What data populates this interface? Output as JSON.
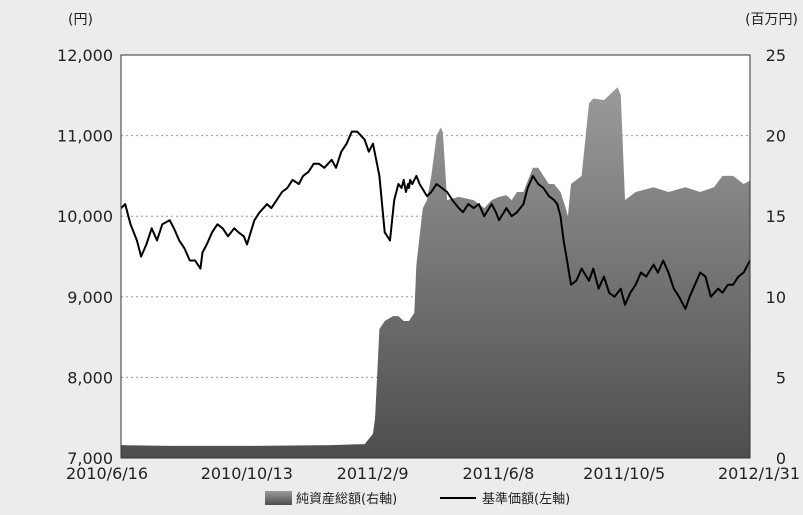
{
  "chart_data": {
    "type": "area",
    "title": "",
    "left_axis": {
      "unit": "(円)",
      "ylim": [
        7000,
        12000
      ],
      "ticks": [
        7000,
        8000,
        9000,
        10000,
        11000,
        12000
      ],
      "tick_labels": [
        "7,000",
        "8,000",
        "9,000",
        "10,000",
        "11,000",
        "12,000"
      ]
    },
    "right_axis": {
      "unit": "(百万円)",
      "ylim": [
        0,
        25
      ],
      "ticks": [
        0,
        5,
        10,
        15,
        20,
        25
      ],
      "tick_labels": [
        "0",
        "5",
        "10",
        "15",
        "20",
        "25"
      ]
    },
    "x_axis": {
      "range": [
        "2010-06-16",
        "2012-01-31"
      ],
      "tick_labels": [
        "2010/6/16",
        "2010/10/13",
        "2011/2/9",
        "2011/6/8",
        "2011/10/5",
        "2012/1/31"
      ]
    },
    "grid": "horizontal dotted",
    "legend": {
      "placement": "bottom-center",
      "entries": [
        "純資産総額(右軸)",
        "基準価額(左軸)"
      ]
    },
    "series": [
      {
        "name": "純資産総額(右軸)",
        "axis": "right",
        "style": "area",
        "color": "#6e6e6e",
        "x": [
          "2010-06-16",
          "2010-08-01",
          "2010-10-13",
          "2011-01-01",
          "2011-01-25",
          "2011-02-01",
          "2011-02-09",
          "2011-02-11",
          "2011-02-15",
          "2011-02-20",
          "2011-02-28",
          "2011-03-05",
          "2011-03-10",
          "2011-03-15",
          "2011-03-20",
          "2011-03-22",
          "2011-03-28",
          "2011-04-01",
          "2011-04-05",
          "2011-04-10",
          "2011-04-14",
          "2011-04-16",
          "2011-04-20",
          "2011-05-01",
          "2011-05-15",
          "2011-05-25",
          "2011-06-01",
          "2011-06-08",
          "2011-06-15",
          "2011-06-20",
          "2011-06-25",
          "2011-07-01",
          "2011-07-10",
          "2011-07-15",
          "2011-07-25",
          "2011-07-30",
          "2011-08-05",
          "2011-08-10",
          "2011-08-12",
          "2011-08-15",
          "2011-08-25",
          "2011-09-01",
          "2011-09-05",
          "2011-09-15",
          "2011-09-28",
          "2011-10-01",
          "2011-10-05",
          "2011-10-15",
          "2011-11-01",
          "2011-11-15",
          "2011-12-01",
          "2011-12-15",
          "2011-12-28",
          "2012-01-05",
          "2012-01-15",
          "2012-01-25",
          "2012-01-31"
        ],
        "values": [
          0.8,
          0.75,
          0.75,
          0.8,
          0.85,
          0.85,
          1.5,
          2.5,
          8.0,
          8.5,
          8.8,
          8.8,
          8.5,
          8.5,
          9.0,
          12.0,
          15.5,
          16.0,
          17.5,
          20.0,
          20.5,
          20.2,
          16.0,
          16.2,
          16.0,
          15.5,
          16.0,
          16.2,
          16.3,
          16.0,
          16.5,
          16.5,
          18.0,
          18.0,
          17.0,
          17.0,
          16.5,
          15.5,
          15.0,
          17.0,
          17.5,
          22.0,
          22.3,
          22.2,
          23.0,
          22.5,
          16.0,
          16.5,
          16.8,
          16.5,
          16.8,
          16.5,
          16.8,
          17.5,
          17.5,
          17.0,
          17.2
        ]
      },
      {
        "name": "基準価額(左軸)",
        "axis": "left",
        "style": "line",
        "color": "#000000",
        "x": [
          "2010-06-16",
          "2010-06-20",
          "2010-06-25",
          "2010-07-01",
          "2010-07-05",
          "2010-07-10",
          "2010-07-15",
          "2010-07-20",
          "2010-07-25",
          "2010-08-01",
          "2010-08-05",
          "2010-08-10",
          "2010-08-15",
          "2010-08-20",
          "2010-08-25",
          "2010-08-30",
          "2010-09-01",
          "2010-09-05",
          "2010-09-10",
          "2010-09-15",
          "2010-09-20",
          "2010-09-25",
          "2010-10-01",
          "2010-10-05",
          "2010-10-10",
          "2010-10-13",
          "2010-10-20",
          "2010-10-25",
          "2010-11-01",
          "2010-11-05",
          "2010-11-10",
          "2010-11-15",
          "2010-11-20",
          "2010-11-25",
          "2010-12-01",
          "2010-12-05",
          "2010-12-10",
          "2010-12-15",
          "2010-12-20",
          "2010-12-25",
          "2011-01-01",
          "2011-01-05",
          "2011-01-10",
          "2011-01-15",
          "2011-01-20",
          "2011-01-25",
          "2011-02-01",
          "2011-02-05",
          "2011-02-09",
          "2011-02-12",
          "2011-02-15",
          "2011-02-20",
          "2011-02-25",
          "2011-03-01",
          "2011-03-05",
          "2011-03-08",
          "2011-03-10",
          "2011-03-12",
          "2011-03-14",
          "2011-03-15",
          "2011-03-16",
          "2011-03-18",
          "2011-03-22",
          "2011-03-25",
          "2011-04-01",
          "2011-04-05",
          "2011-04-10",
          "2011-04-15",
          "2011-04-20",
          "2011-04-25",
          "2011-05-01",
          "2011-05-05",
          "2011-05-10",
          "2011-05-15",
          "2011-05-20",
          "2011-05-25",
          "2011-06-01",
          "2011-06-05",
          "2011-06-08",
          "2011-06-15",
          "2011-06-20",
          "2011-06-25",
          "2011-07-01",
          "2011-07-05",
          "2011-07-10",
          "2011-07-15",
          "2011-07-20",
          "2011-07-25",
          "2011-07-30",
          "2011-08-02",
          "2011-08-05",
          "2011-08-08",
          "2011-08-10",
          "2011-08-15",
          "2011-08-20",
          "2011-08-25",
          "2011-09-01",
          "2011-09-05",
          "2011-09-10",
          "2011-09-15",
          "2011-09-20",
          "2011-09-25",
          "2011-10-01",
          "2011-10-05",
          "2011-10-10",
          "2011-10-15",
          "2011-10-20",
          "2011-10-25",
          "2011-11-01",
          "2011-11-05",
          "2011-11-10",
          "2011-11-15",
          "2011-11-20",
          "2011-11-25",
          "2011-12-01",
          "2011-12-05",
          "2011-12-10",
          "2011-12-15",
          "2011-12-20",
          "2011-12-25",
          "2012-01-01",
          "2012-01-05",
          "2012-01-10",
          "2012-01-15",
          "2012-01-20",
          "2012-01-25",
          "2012-01-31"
        ],
        "values": [
          10100,
          10150,
          9900,
          9700,
          9500,
          9650,
          9850,
          9700,
          9900,
          9950,
          9850,
          9700,
          9600,
          9450,
          9450,
          9350,
          9550,
          9650,
          9800,
          9900,
          9850,
          9750,
          9850,
          9800,
          9750,
          9650,
          9950,
          10050,
          10150,
          10100,
          10200,
          10300,
          10350,
          10450,
          10400,
          10500,
          10550,
          10650,
          10650,
          10600,
          10700,
          10600,
          10800,
          10900,
          11050,
          11050,
          10950,
          10800,
          10900,
          10700,
          10500,
          9800,
          9700,
          10200,
          10400,
          10350,
          10450,
          10300,
          10400,
          10350,
          10450,
          10400,
          10500,
          10400,
          10250,
          10300,
          10400,
          10350,
          10300,
          10200,
          10100,
          10050,
          10150,
          10100,
          10150,
          10000,
          10150,
          10050,
          9950,
          10100,
          10000,
          10050,
          10150,
          10350,
          10500,
          10400,
          10350,
          10250,
          10200,
          10150,
          10000,
          9700,
          9550,
          9150,
          9200,
          9350,
          9200,
          9350,
          9100,
          9250,
          9050,
          9000,
          9100,
          8900,
          9050,
          9150,
          9300,
          9250,
          9400,
          9300,
          9450,
          9300,
          9100,
          9000,
          8850,
          9000,
          9150,
          9300,
          9250,
          9000,
          9100,
          9050,
          9150,
          9150,
          9250,
          9300,
          9450
        ]
      }
    ]
  }
}
